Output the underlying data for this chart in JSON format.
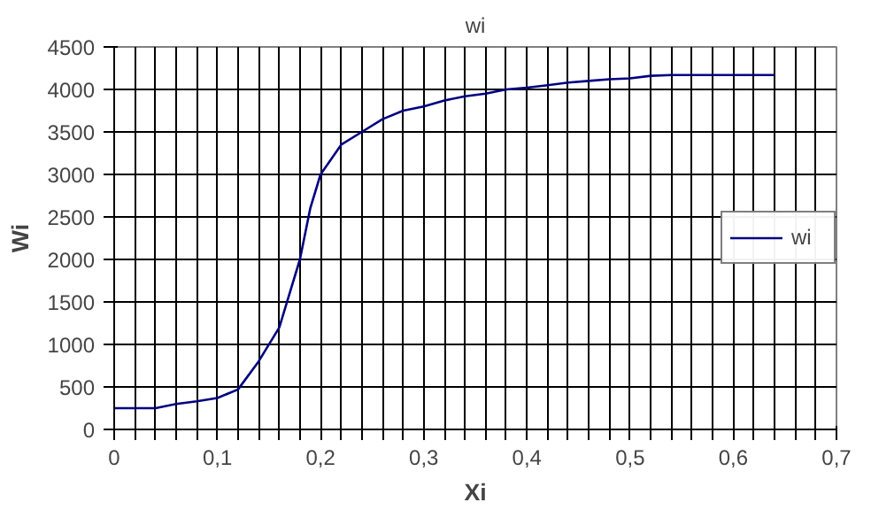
{
  "chart_data": {
    "type": "line",
    "title": "wi",
    "xlabel": "Xi",
    "ylabel": "Wi",
    "x": [
      0,
      0.02,
      0.04,
      0.06,
      0.08,
      0.1,
      0.12,
      0.14,
      0.16,
      0.17,
      0.18,
      0.19,
      0.2,
      0.22,
      0.24,
      0.26,
      0.28,
      0.3,
      0.32,
      0.34,
      0.36,
      0.38,
      0.4,
      0.42,
      0.44,
      0.46,
      0.48,
      0.5,
      0.52,
      0.54,
      0.56,
      0.6,
      0.64
    ],
    "series": [
      {
        "name": "wi",
        "color": "#000080",
        "values": [
          250,
          250,
          250,
          300,
          330,
          370,
          470,
          800,
          1200,
          1600,
          2000,
          2600,
          3000,
          3350,
          3500,
          3650,
          3750,
          3800,
          3870,
          3920,
          3950,
          4000,
          4020,
          4050,
          4080,
          4100,
          4120,
          4130,
          4160,
          4170,
          4170,
          4170,
          4170
        ]
      }
    ],
    "xlim": [
      0,
      0.7
    ],
    "ylim": [
      0,
      4500
    ],
    "xticks": [
      {
        "value": 0,
        "label": "0"
      },
      {
        "value": 0.02,
        "label": null
      },
      {
        "value": 0.04,
        "label": null
      },
      {
        "value": 0.06,
        "label": null
      },
      {
        "value": 0.08,
        "label": null
      },
      {
        "value": 0.1,
        "label": "0,1"
      },
      {
        "value": 0.12,
        "label": null
      },
      {
        "value": 0.14,
        "label": null
      },
      {
        "value": 0.16,
        "label": null
      },
      {
        "value": 0.18,
        "label": null
      },
      {
        "value": 0.2,
        "label": "0,2"
      },
      {
        "value": 0.22,
        "label": null
      },
      {
        "value": 0.24,
        "label": null
      },
      {
        "value": 0.26,
        "label": null
      },
      {
        "value": 0.28,
        "label": null
      },
      {
        "value": 0.3,
        "label": "0,3"
      },
      {
        "value": 0.32,
        "label": null
      },
      {
        "value": 0.34,
        "label": null
      },
      {
        "value": 0.36,
        "label": null
      },
      {
        "value": 0.38,
        "label": null
      },
      {
        "value": 0.4,
        "label": "0,4"
      },
      {
        "value": 0.42,
        "label": null
      },
      {
        "value": 0.44,
        "label": null
      },
      {
        "value": 0.46,
        "label": null
      },
      {
        "value": 0.48,
        "label": null
      },
      {
        "value": 0.5,
        "label": "0,5"
      },
      {
        "value": 0.52,
        "label": null
      },
      {
        "value": 0.54,
        "label": null
      },
      {
        "value": 0.56,
        "label": null
      },
      {
        "value": 0.58,
        "label": null
      },
      {
        "value": 0.6,
        "label": "0,6"
      },
      {
        "value": 0.62,
        "label": null
      },
      {
        "value": 0.64,
        "label": null
      },
      {
        "value": 0.66,
        "label": null
      },
      {
        "value": 0.68,
        "label": null
      },
      {
        "value": 0.7,
        "label": "0,7"
      }
    ],
    "yticks": [
      0,
      500,
      1000,
      1500,
      2000,
      2500,
      3000,
      3500,
      4000,
      4500
    ],
    "grid": true,
    "legend": "right",
    "marker": "none",
    "line_style": "solid"
  }
}
